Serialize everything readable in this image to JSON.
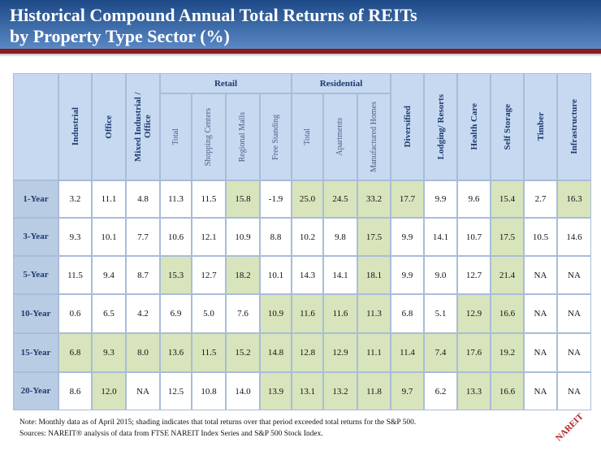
{
  "header": {
    "title": [
      "Historical Compound Annual Total Returns of REITs",
      "by Property Type Sector (%)"
    ]
  },
  "table": {
    "columns": [
      {
        "label": "Industrial"
      },
      {
        "label": "Office"
      },
      {
        "label": "Mixed Industrial / Office"
      },
      {
        "group": "Retail",
        "subs": [
          "Total",
          "Shopping Centers",
          "Regional Malls",
          "Free Standing"
        ]
      },
      {
        "group": "Residential",
        "subs": [
          "Total",
          "Apartments",
          "Manufactured Homes"
        ]
      },
      {
        "label": "Diversified"
      },
      {
        "label": "Lodging/ Resorts"
      },
      {
        "label": "Health Care"
      },
      {
        "label": "Self Storage"
      },
      {
        "label": "Timber"
      },
      {
        "label": "Infrastructure"
      }
    ],
    "rows": [
      {
        "label": "1-Year",
        "cells": [
          "3.2",
          "11.1",
          "4.8",
          "11.3",
          "11.5",
          "15.8",
          "-1.9",
          "25.0",
          "24.5",
          "33.2",
          "17.7",
          "9.9",
          "9.6",
          "15.4",
          "2.7",
          "16.3"
        ],
        "shaded": [
          false,
          false,
          false,
          false,
          false,
          true,
          false,
          true,
          true,
          true,
          true,
          false,
          false,
          true,
          false,
          true
        ]
      },
      {
        "label": "3-Year",
        "cells": [
          "9.3",
          "10.1",
          "7.7",
          "10.6",
          "12.1",
          "10.9",
          "8.8",
          "10.2",
          "9.8",
          "17.5",
          "9.9",
          "14.1",
          "10.7",
          "17.5",
          "10.5",
          "14.6"
        ],
        "shaded": [
          false,
          false,
          false,
          false,
          false,
          false,
          false,
          false,
          false,
          true,
          false,
          false,
          false,
          true,
          false,
          false
        ]
      },
      {
        "label": "5-Year",
        "cells": [
          "11.5",
          "9.4",
          "8.7",
          "15.3",
          "12.7",
          "18.2",
          "10.1",
          "14.3",
          "14.1",
          "18.1",
          "9.9",
          "9.0",
          "12.7",
          "21.4",
          "NA",
          "NA"
        ],
        "shaded": [
          false,
          false,
          false,
          true,
          false,
          true,
          false,
          false,
          false,
          true,
          false,
          false,
          false,
          true,
          false,
          false
        ]
      },
      {
        "label": "10-Year",
        "cells": [
          "0.6",
          "6.5",
          "4.2",
          "6.9",
          "5.0",
          "7.6",
          "10.9",
          "11.6",
          "11.6",
          "11.3",
          "6.8",
          "5.1",
          "12.9",
          "16.6",
          "NA",
          "NA"
        ],
        "shaded": [
          false,
          false,
          false,
          false,
          false,
          false,
          true,
          true,
          true,
          true,
          false,
          false,
          true,
          true,
          false,
          false
        ]
      },
      {
        "label": "15-Year",
        "cells": [
          "6.8",
          "9.3",
          "8.0",
          "13.6",
          "11.5",
          "15.2",
          "14.8",
          "12.8",
          "12.9",
          "11.1",
          "11.4",
          "7.4",
          "17.6",
          "19.2",
          "NA",
          "NA"
        ],
        "shaded": [
          true,
          true,
          true,
          true,
          true,
          true,
          true,
          true,
          true,
          true,
          true,
          true,
          true,
          true,
          false,
          false
        ]
      },
      {
        "label": "20-Year",
        "cells": [
          "8.6",
          "12.0",
          "NA",
          "12.5",
          "10.8",
          "14.0",
          "13.9",
          "13.1",
          "13.2",
          "11.8",
          "9.7",
          "6.2",
          "13.3",
          "16.6",
          "NA",
          "NA"
        ],
        "shaded": [
          false,
          true,
          false,
          false,
          false,
          false,
          true,
          true,
          true,
          true,
          true,
          false,
          true,
          true,
          false,
          false
        ]
      }
    ]
  },
  "notes": [
    "Note: Monthly data as of April 2015; shading indicates that total returns over that period exceeded total returns for the S&P 500.",
    "Sources: NAREIT® analysis of data from FTSE NAREIT Index Series and S&P 500 Stock Index."
  ],
  "logo": "NAREIT"
}
